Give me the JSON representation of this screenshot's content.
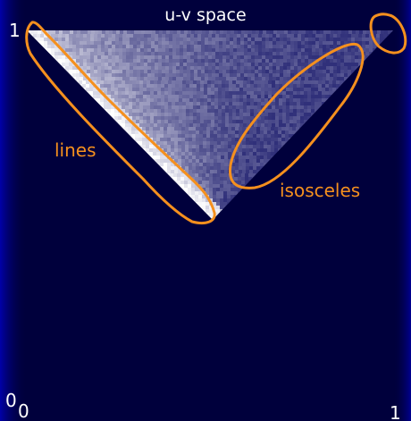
{
  "chart_data": {
    "type": "heatmap",
    "title": "u-v space",
    "xlabel": "",
    "ylabel": "",
    "xlim": [
      0,
      1
    ],
    "ylim": [
      0,
      1
    ],
    "x_ticks": [
      "0",
      "1"
    ],
    "y_ticks": [
      "0",
      "1"
    ],
    "description_regions": [
      {
        "label": "lines"
      },
      {
        "label": "isosceles"
      }
    ],
    "colors": {
      "background": "#00003c",
      "density_high": "#ffffff",
      "density_low": "#1a1a6e",
      "annotation": "#f5901e",
      "text": "#ffffff"
    }
  }
}
